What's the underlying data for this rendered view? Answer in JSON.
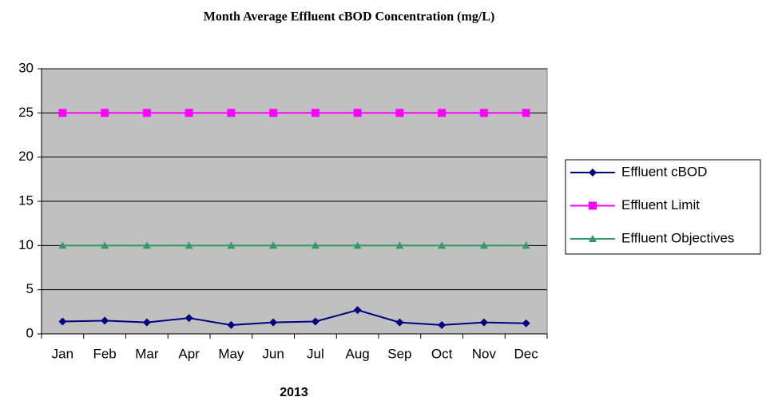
{
  "chart_data": {
    "type": "line",
    "title": "Month Average Effluent cBOD Concentration (mg/L)",
    "x_label": "2013",
    "categories": [
      "Jan",
      "Feb",
      "Mar",
      "Apr",
      "May",
      "Jun",
      "Jul",
      "Aug",
      "Sep",
      "Oct",
      "Nov",
      "Dec"
    ],
    "series": [
      {
        "name": "Effluent cBOD",
        "color": "#000080",
        "marker": "diamond",
        "values": [
          1.4,
          1.5,
          1.3,
          1.8,
          1.0,
          1.3,
          1.4,
          2.7,
          1.3,
          1.0,
          1.3,
          1.2
        ]
      },
      {
        "name": "Effluent Limit",
        "color": "#ff00ff",
        "marker": "square",
        "values": [
          25,
          25,
          25,
          25,
          25,
          25,
          25,
          25,
          25,
          25,
          25,
          25
        ]
      },
      {
        "name": "Effluent Objectives",
        "color": "#339966",
        "marker": "triangle",
        "values": [
          10,
          10,
          10,
          10,
          10,
          10,
          10,
          10,
          10,
          10,
          10,
          10
        ]
      }
    ],
    "ylim": [
      0,
      30
    ],
    "yticks": [
      0,
      5,
      10,
      15,
      20,
      25,
      30
    ],
    "grid": true,
    "legend": "right"
  }
}
